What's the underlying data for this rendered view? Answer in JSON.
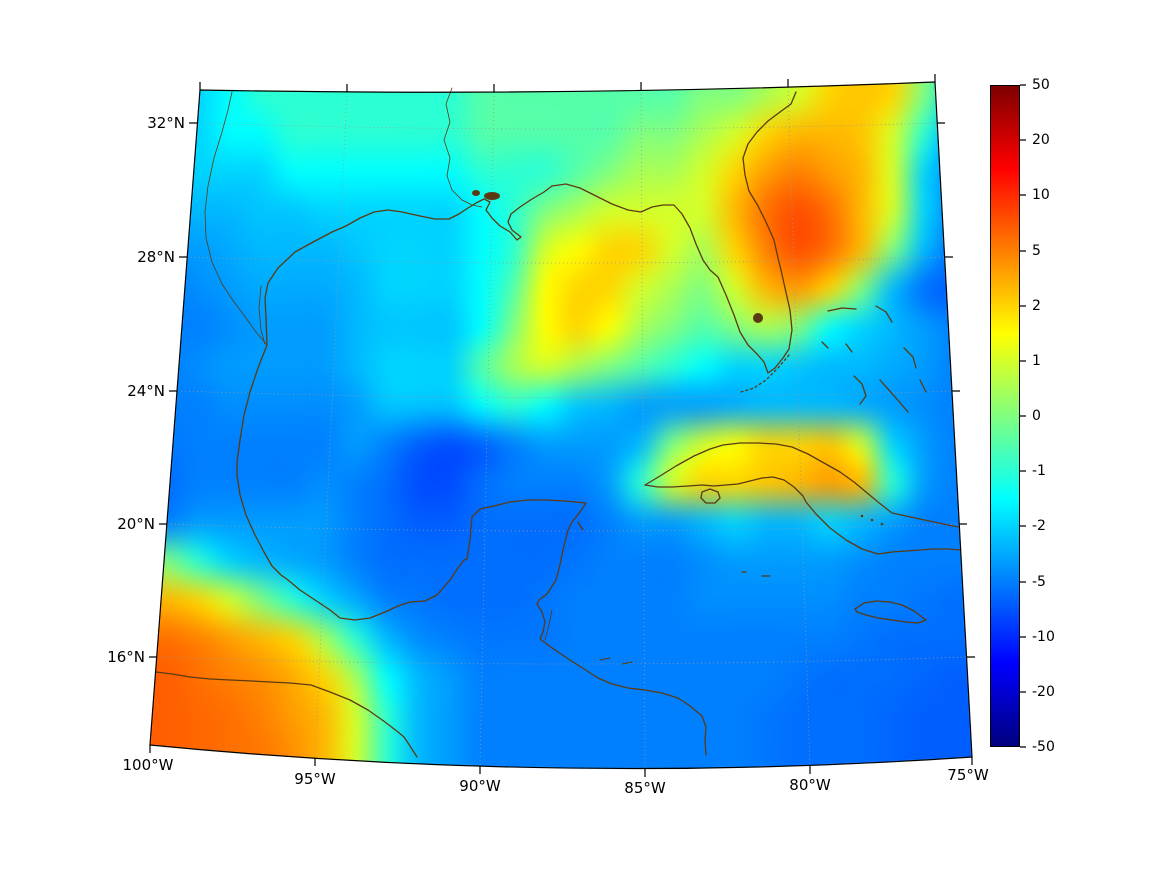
{
  "figure": {
    "background": "#ffffff"
  },
  "axes": {
    "x_tick_labels": [
      "100°W",
      "95°W",
      "90°W",
      "85°W",
      "80°W",
      "75°W"
    ],
    "y_tick_labels": [
      "32°N",
      "28°N",
      "24°N",
      "20°N",
      "16°N"
    ]
  },
  "colorbar": {
    "tick_labels": [
      "50",
      "20",
      "10",
      "5",
      "2",
      "1",
      "0",
      "-1",
      "-2",
      "-5",
      "-10",
      "-20",
      "-50"
    ],
    "gradient": {
      "stops": [
        "#7f0000",
        "#ff0000",
        "#ffff00",
        "#00ffff",
        "#0000ff",
        "#00007f"
      ],
      "positions": [
        0,
        12.5,
        37.5,
        62.5,
        87.5,
        100
      ]
    }
  },
  "chart_data": {
    "type": "heatmap",
    "title": "",
    "xlabel": "",
    "ylabel": "",
    "x_tick_labels": [
      "100°W",
      "95°W",
      "90°W",
      "85°W",
      "80°W",
      "75°W"
    ],
    "y_tick_labels": [
      "32°N",
      "28°N",
      "24°N",
      "20°N",
      "16°N"
    ],
    "lon_range_deg_west": [
      100,
      75
    ],
    "lat_range_deg_north_approx": [
      14,
      33
    ],
    "projection_hint": "conic-curved-graticule",
    "grid_on": true,
    "colormap": "jet",
    "color_scale": "symlog",
    "colorbar_ticks": [
      50,
      20,
      10,
      5,
      2,
      1,
      0,
      -1,
      -2,
      -5,
      -10,
      -20,
      -50
    ],
    "value_range": [
      -50,
      50
    ],
    "grid_rows": 18,
    "grid_cols": 26,
    "values": [
      [
        -2,
        -2,
        -1.5,
        -1,
        -1,
        -1,
        -1,
        -1,
        -1,
        -1,
        -0.5,
        -0.5,
        -0.5,
        -0.5,
        -0.5,
        -0.5,
        -0.5,
        0,
        0,
        0.5,
        1,
        2,
        2.5,
        2,
        0,
        -2
      ],
      [
        -2,
        -2,
        -1.5,
        -1.5,
        -1,
        -1,
        -1,
        -1,
        -1,
        -1,
        -0.5,
        -0.5,
        -0.5,
        -0.5,
        -0.5,
        0,
        0,
        0.5,
        1,
        2,
        3,
        3,
        2.5,
        1,
        -1,
        -4
      ],
      [
        -2.5,
        -2,
        -2,
        -2,
        -1.5,
        -1.5,
        -1.5,
        -1.5,
        -1.5,
        -1.5,
        -1,
        -1,
        -1,
        -0.5,
        0,
        0.5,
        0.5,
        1,
        2,
        4,
        5,
        4,
        3,
        1,
        -2,
        -5
      ],
      [
        -3,
        -3,
        -3,
        -2.5,
        -2.5,
        -2,
        -2,
        -2,
        -2,
        -2,
        -1.5,
        -1,
        0,
        0.5,
        1,
        1,
        1,
        1,
        3,
        6,
        8,
        6,
        3,
        1,
        -2,
        -5
      ],
      [
        -4,
        -4,
        -3.5,
        -3,
        -3,
        -3,
        -2.5,
        -2,
        -2,
        -2,
        -1.5,
        -1,
        1,
        1.5,
        2,
        2,
        1,
        0.5,
        2,
        5,
        8,
        6,
        3,
        0,
        -3,
        -6
      ],
      [
        -5,
        -4.5,
        -4,
        -3.5,
        -3.5,
        -3.5,
        -3,
        -2,
        -2,
        -2,
        -1.5,
        -0.5,
        1.5,
        2,
        2,
        1,
        0.5,
        0,
        1,
        3,
        4,
        2,
        0,
        -3,
        -6,
        -7
      ],
      [
        -5,
        -5,
        -4.5,
        -4,
        -4,
        -4,
        -3,
        -2.5,
        -2.5,
        -2.5,
        -1.5,
        0,
        1.5,
        2,
        1.5,
        0.5,
        0,
        -0.5,
        0,
        0.5,
        0,
        -1.5,
        -2,
        -3,
        -4,
        -5
      ],
      [
        -5,
        -4.5,
        -4,
        -4,
        -4,
        -4,
        -3,
        -2,
        -2,
        -2,
        -0.5,
        0.5,
        1,
        0.5,
        0,
        -0.5,
        -1,
        -1.5,
        -2,
        -2,
        -2.5,
        -3,
        -3,
        -3.5,
        -4,
        -5
      ],
      [
        -5,
        -5,
        -4.5,
        -4.5,
        -4.5,
        -4.5,
        -4,
        -2.5,
        -2.5,
        -2.5,
        -1.5,
        -1,
        -1.5,
        -2.5,
        -3,
        -4,
        -4,
        -4,
        -3.5,
        -3,
        -3,
        -3,
        -3.5,
        -4,
        -4.5,
        -5
      ],
      [
        -5.5,
        -5,
        -5,
        -5,
        -5,
        -5,
        -4,
        -5,
        -7,
        -8,
        -7,
        -5,
        -4,
        -4,
        -4,
        -3,
        0,
        1,
        1.5,
        2,
        2,
        2.5,
        1,
        -2,
        -4,
        -5
      ],
      [
        -6,
        -5,
        -5,
        -5,
        -5,
        -4.5,
        -5,
        -6,
        -8,
        -8,
        -6,
        -5,
        -5,
        -5,
        -4,
        -1,
        1,
        2,
        2,
        2.5,
        3,
        4,
        3,
        -1,
        -4,
        -5
      ],
      [
        -5,
        -4,
        -4,
        -4,
        -4,
        -4,
        -5,
        -6,
        -7,
        -7,
        -6,
        -6,
        -6,
        -6,
        -5,
        -4,
        -4,
        -3,
        -2,
        -3,
        -3,
        -2,
        -3,
        -4,
        -5,
        -5
      ],
      [
        0,
        -1,
        -2,
        -3,
        -3.5,
        -4,
        -5,
        -6,
        -6,
        -6,
        -6,
        -6,
        -6,
        -5.5,
        -5,
        -5,
        -5,
        -4.5,
        -4,
        -4,
        -4,
        -4,
        -4.5,
        -5,
        -5,
        -5
      ],
      [
        3,
        2,
        1,
        0,
        -1,
        -2,
        -3.5,
        -5,
        -5.5,
        -6,
        -6,
        -6,
        -5.5,
        -5,
        -5,
        -5,
        -5,
        -4.5,
        -4.5,
        -4.5,
        -4.5,
        -4.5,
        -5,
        -5,
        -5.5,
        -6
      ],
      [
        6,
        5,
        4,
        3,
        2,
        0.5,
        -1,
        -3,
        -4.5,
        -5,
        -5.5,
        -5.5,
        -5.5,
        -5,
        -5,
        -5,
        -5,
        -5,
        -5,
        -5,
        -5,
        -5,
        -5.5,
        -6,
        -6,
        -6
      ],
      [
        7,
        6,
        5,
        4.5,
        3.5,
        2,
        0.5,
        -1.5,
        -3,
        -4,
        -5,
        -5,
        -5,
        -5,
        -5,
        -5,
        -5,
        -5,
        -5,
        -5,
        -5.5,
        -6,
        -6,
        -6,
        -6.5,
        -7
      ],
      [
        7,
        6.5,
        6,
        5,
        4,
        3,
        1,
        -1,
        -3,
        -4,
        -5,
        -5,
        -5,
        -5,
        -5,
        -5,
        -5,
        -5,
        -5,
        -5.5,
        -6,
        -6,
        -6,
        -6.5,
        -7,
        -7
      ],
      [
        7,
        6.5,
        6,
        5.5,
        4.5,
        3,
        1,
        -1,
        -3,
        -4,
        -5,
        -5,
        -5,
        -5,
        -5,
        -5,
        -5,
        -5,
        -5,
        -5.5,
        -6,
        -6,
        -6,
        -6.5,
        -7,
        -7
      ]
    ]
  }
}
